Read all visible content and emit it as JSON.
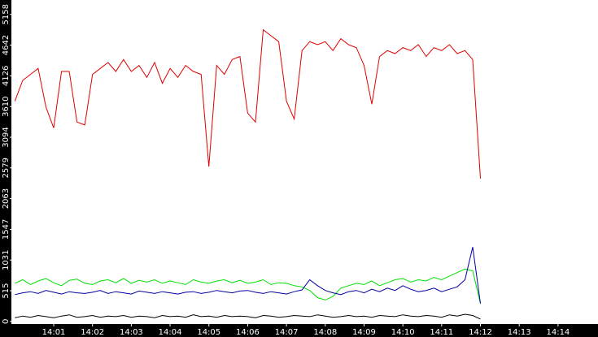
{
  "chart_data": {
    "type": "line",
    "x": [
      0,
      0.2,
      0.4,
      0.6,
      0.8,
      1.0,
      1.2,
      1.4,
      1.6,
      1.8,
      2.0,
      2.2,
      2.4,
      2.6,
      2.8,
      3.0,
      3.2,
      3.4,
      3.6,
      3.8,
      4.0,
      4.2,
      4.4,
      4.6,
      4.8,
      5.0,
      5.2,
      5.4,
      5.6,
      5.8,
      6.0,
      6.2,
      6.4,
      6.6,
      6.8,
      7.0,
      7.2,
      7.4,
      7.6,
      7.8,
      8.0,
      8.2,
      8.4,
      8.6,
      8.8,
      9.0,
      9.2,
      9.4,
      9.6,
      9.8,
      10.0,
      10.2,
      10.4,
      10.6,
      10.8,
      11.0,
      11.2,
      11.4,
      11.6,
      11.8,
      12.0
    ],
    "series": [
      {
        "name": "red",
        "color": "#e00000",
        "values": [
          3700,
          4050,
          4150,
          4250,
          3600,
          3250,
          4200,
          4200,
          3350,
          3300,
          4150,
          4250,
          4350,
          4200,
          4400,
          4200,
          4300,
          4100,
          4350,
          4000,
          4250,
          4100,
          4300,
          4200,
          4150,
          2600,
          4300,
          4150,
          4400,
          4450,
          3500,
          3350,
          4900,
          4800,
          4700,
          3700,
          3400,
          4550,
          4700,
          4650,
          4700,
          4550,
          4750,
          4650,
          4600,
          4300,
          3650,
          4450,
          4550,
          4500,
          4600,
          4550,
          4650,
          4450,
          4600,
          4550,
          4650,
          4500,
          4550,
          4400,
          2400
        ]
      },
      {
        "name": "green",
        "color": "#00e000",
        "values": [
          640,
          700,
          620,
          680,
          720,
          650,
          600,
          690,
          710,
          640,
          620,
          680,
          700,
          650,
          720,
          640,
          690,
          660,
          700,
          640,
          680,
          650,
          620,
          700,
          660,
          640,
          680,
          700,
          650,
          690,
          640,
          660,
          700,
          620,
          650,
          640,
          600,
          580,
          520,
          400,
          360,
          420,
          560,
          600,
          640,
          620,
          680,
          600,
          650,
          700,
          720,
          660,
          700,
          680,
          740,
          700,
          760,
          820,
          880,
          850,
          300
        ]
      },
      {
        "name": "blue",
        "color": "#0000a0",
        "values": [
          450,
          480,
          500,
          470,
          520,
          490,
          460,
          500,
          480,
          470,
          490,
          520,
          470,
          500,
          480,
          460,
          510,
          490,
          470,
          500,
          480,
          460,
          490,
          500,
          470,
          490,
          520,
          500,
          480,
          510,
          520,
          490,
          470,
          500,
          480,
          460,
          500,
          530,
          700,
          600,
          520,
          480,
          450,
          500,
          520,
          480,
          540,
          500,
          560,
          520,
          600,
          540,
          500,
          520,
          560,
          500,
          540,
          580,
          700,
          1250,
          300
        ]
      },
      {
        "name": "black",
        "color": "#000000",
        "values": [
          60,
          90,
          70,
          100,
          80,
          60,
          90,
          110,
          70,
          80,
          100,
          70,
          90,
          80,
          100,
          70,
          90,
          80,
          60,
          100,
          80,
          90,
          70,
          110,
          80,
          90,
          70,
          100,
          80,
          90,
          80,
          60,
          100,
          90,
          70,
          80,
          100,
          90,
          80,
          110,
          90,
          70,
          80,
          100,
          80,
          90,
          70,
          100,
          90,
          80,
          110,
          90,
          80,
          100,
          90,
          70,
          110,
          90,
          120,
          100,
          40
        ]
      }
    ],
    "xlim": [
      -0.07,
      15.03
    ],
    "xticks": [
      {
        "value": 1,
        "label": "14:01"
      },
      {
        "value": 2,
        "label": "14:02"
      },
      {
        "value": 3,
        "label": "14:03"
      },
      {
        "value": 4,
        "label": "14:04"
      },
      {
        "value": 5,
        "label": "14:05"
      },
      {
        "value": 6,
        "label": "14:06"
      },
      {
        "value": 7,
        "label": "14:07"
      },
      {
        "value": 8,
        "label": "14:08"
      },
      {
        "value": 9,
        "label": "14:09"
      },
      {
        "value": 10,
        "label": "14:10"
      },
      {
        "value": 11,
        "label": "14:11"
      },
      {
        "value": 12,
        "label": "14:12"
      },
      {
        "value": 13,
        "label": "14:13"
      },
      {
        "value": 14,
        "label": "14:14"
      }
    ],
    "ylim": [
      -30,
      5400
    ],
    "yticks": [
      0,
      515,
      1031,
      1547,
      2063,
      2579,
      3094,
      3610,
      4126,
      4642,
      5158
    ],
    "grid": false
  }
}
